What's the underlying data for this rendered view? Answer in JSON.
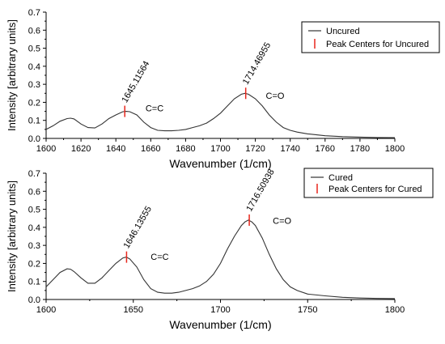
{
  "chart_data": [
    {
      "type": "line",
      "xlabel": "Wavenumber (1/cm)",
      "ylabel": "Intensity [arbitrary units]",
      "xlim": [
        1600,
        1800
      ],
      "ylim": [
        0,
        0.7
      ],
      "x_ticks": [
        1600,
        1620,
        1640,
        1660,
        1680,
        1700,
        1720,
        1740,
        1760,
        1780,
        1800
      ],
      "y_ticks": [
        0,
        0.1,
        0.2,
        0.3,
        0.4,
        0.5,
        0.6,
        0.7
      ],
      "legend_position": "top-right",
      "series": [
        {
          "name": "Uncured",
          "color": "#333333",
          "x": [
            1600,
            1604,
            1608,
            1612,
            1614,
            1616,
            1620,
            1624,
            1628,
            1632,
            1636,
            1640,
            1644,
            1646,
            1648,
            1652,
            1656,
            1660,
            1664,
            1668,
            1672,
            1676,
            1680,
            1684,
            1688,
            1692,
            1696,
            1700,
            1704,
            1708,
            1712,
            1714,
            1716,
            1720,
            1724,
            1728,
            1732,
            1736,
            1740,
            1744,
            1750,
            1760,
            1770,
            1780,
            1790,
            1800
          ],
          "y": [
            0.05,
            0.07,
            0.095,
            0.11,
            0.112,
            0.108,
            0.08,
            0.06,
            0.058,
            0.08,
            0.11,
            0.13,
            0.148,
            0.15,
            0.148,
            0.13,
            0.09,
            0.06,
            0.045,
            0.042,
            0.042,
            0.045,
            0.05,
            0.06,
            0.07,
            0.085,
            0.11,
            0.14,
            0.18,
            0.22,
            0.245,
            0.25,
            0.245,
            0.22,
            0.18,
            0.13,
            0.09,
            0.06,
            0.045,
            0.035,
            0.025,
            0.015,
            0.01,
            0.007,
            0.005,
            0.004
          ]
        },
        {
          "name": "Peak Centers for Uncured",
          "color": "#e8261c",
          "x": [
            1645.11564,
            1714.46955
          ],
          "y": [
            0.15,
            0.25
          ]
        }
      ],
      "annotations": [
        {
          "text": "1645.11564",
          "x": 1645.11564,
          "y": 0.15
        },
        {
          "text": "1714.46955",
          "x": 1714.46955,
          "y": 0.25
        },
        {
          "text": "C=C",
          "x": 1657,
          "y": 0.15
        },
        {
          "text": "C=O",
          "x": 1726,
          "y": 0.22
        }
      ]
    },
    {
      "type": "line",
      "xlabel": "Wavenumber (1/cm)",
      "ylabel": "Intensity [arbitrary units]",
      "xlim": [
        1600,
        1800
      ],
      "ylim": [
        0,
        0.7
      ],
      "x_ticks": [
        1600,
        1650,
        1700,
        1750,
        1800
      ],
      "y_ticks": [
        0,
        0.1,
        0.2,
        0.3,
        0.4,
        0.5,
        0.6,
        0.7
      ],
      "legend_position": "top-right",
      "series": [
        {
          "name": "Cured",
          "color": "#333333",
          "x": [
            1600,
            1604,
            1608,
            1612,
            1614,
            1616,
            1620,
            1624,
            1628,
            1632,
            1636,
            1640,
            1644,
            1646,
            1648,
            1652,
            1656,
            1660,
            1664,
            1668,
            1672,
            1676,
            1680,
            1684,
            1688,
            1692,
            1696,
            1700,
            1704,
            1708,
            1712,
            1714,
            1716,
            1718,
            1720,
            1724,
            1728,
            1732,
            1736,
            1740,
            1744,
            1750,
            1760,
            1770,
            1780,
            1790,
            1800
          ],
          "y": [
            0.07,
            0.11,
            0.15,
            0.17,
            0.168,
            0.155,
            0.12,
            0.09,
            0.09,
            0.12,
            0.16,
            0.2,
            0.23,
            0.235,
            0.225,
            0.18,
            0.11,
            0.06,
            0.04,
            0.035,
            0.035,
            0.04,
            0.05,
            0.06,
            0.075,
            0.1,
            0.14,
            0.2,
            0.28,
            0.35,
            0.41,
            0.43,
            0.44,
            0.43,
            0.41,
            0.34,
            0.25,
            0.17,
            0.11,
            0.07,
            0.05,
            0.03,
            0.02,
            0.012,
            0.008,
            0.006,
            0.005
          ]
        },
        {
          "name": "Peak Centers for Cured",
          "color": "#e8261c",
          "x": [
            1646.13555,
            1716.50938
          ],
          "y": [
            0.235,
            0.44
          ]
        }
      ],
      "annotations": [
        {
          "text": "1646.13555",
          "x": 1646.13555,
          "y": 0.235
        },
        {
          "text": "1716.50938",
          "x": 1716.50938,
          "y": 0.44
        },
        {
          "text": "C=C",
          "x": 1660,
          "y": 0.22
        },
        {
          "text": "C=O",
          "x": 1730,
          "y": 0.42
        }
      ]
    }
  ]
}
